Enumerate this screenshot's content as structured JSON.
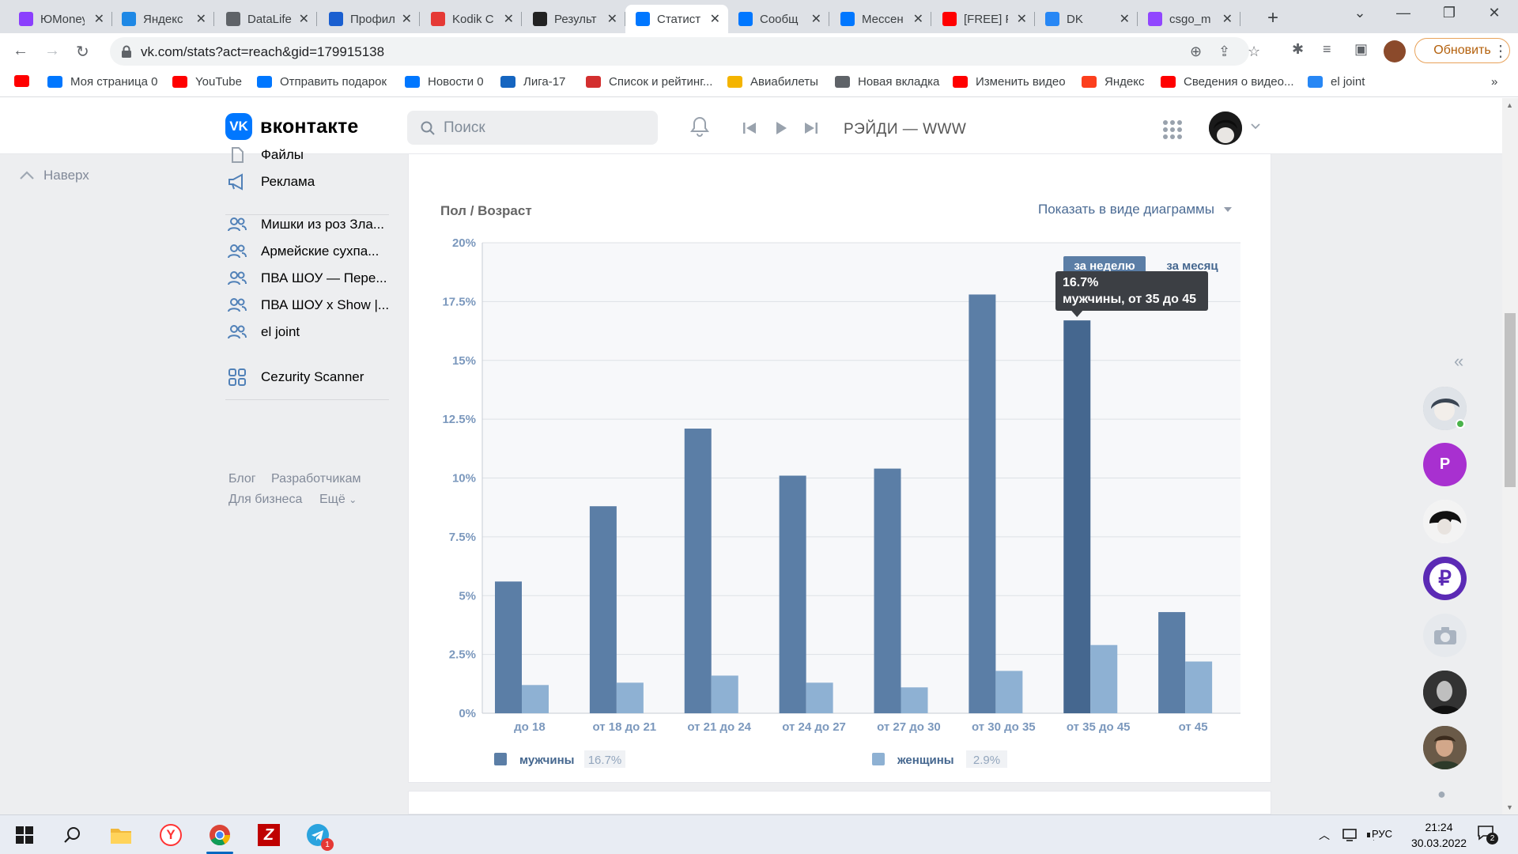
{
  "browser": {
    "tabs": [
      {
        "title": "ЮMoney",
        "icon": "yoomoney-icon",
        "color": "#8b3ffd"
      },
      {
        "title": "Яндекс",
        "icon": "yandex-disk-icon",
        "color": "#1e88e5"
      },
      {
        "title": "DataLife",
        "icon": "globe-icon",
        "color": "#5f6368"
      },
      {
        "title": "Профиль",
        "icon": "shield-icon",
        "color": "#1a5fd0"
      },
      {
        "title": "Kodik C",
        "icon": "kodik-icon",
        "color": "#e53935"
      },
      {
        "title": "Результ",
        "icon": "k-icon",
        "color": "#222222"
      },
      {
        "title": "Статист",
        "icon": "vk-icon",
        "color": "#0077ff"
      },
      {
        "title": "Сообщ",
        "icon": "message-icon",
        "color": "#0077ff"
      },
      {
        "title": "Мессен",
        "icon": "message-icon",
        "color": "#0077ff"
      },
      {
        "title": "[FREE] F",
        "icon": "youtube-icon",
        "color": "#ff0000"
      },
      {
        "title": "DK",
        "icon": "play-icon",
        "color": "#2787f5"
      },
      {
        "title": "csgo_m",
        "icon": "twitch-icon",
        "color": "#9146ff"
      }
    ],
    "active_tab": 6,
    "url": "vk.com/stats?act=reach&gid=179915138",
    "update_label": "Обновить",
    "bookmarks": [
      {
        "label": "",
        "icon": "youtube-icon",
        "color": "#ff0000"
      },
      {
        "label": "Моя страница 0",
        "icon": "vk-icon",
        "color": "#0077ff"
      },
      {
        "label": "YouTube",
        "icon": "youtube-icon",
        "color": "#ff0000"
      },
      {
        "label": "Отправить подарок",
        "icon": "vk-icon",
        "color": "#0077ff"
      },
      {
        "label": "Новости 0",
        "icon": "vk-icon",
        "color": "#0077ff"
      },
      {
        "label": "Лига-17",
        "icon": "calendar-17-icon",
        "color": "#1565c0"
      },
      {
        "label": "Список и рейтинг...",
        "icon": "gift-icon",
        "color": "#d32f2f"
      },
      {
        "label": "Авиабилеты",
        "icon": "plane-ticket-icon",
        "color": "#f4b400"
      },
      {
        "label": "Новая вкладка",
        "icon": "globe-icon",
        "color": "#5f6368"
      },
      {
        "label": "Изменить видео",
        "icon": "youtube-icon",
        "color": "#ff0000"
      },
      {
        "label": "Яндекс",
        "icon": "yandex-icon",
        "color": "#fc3f1d"
      },
      {
        "label": "Сведения о видео...",
        "icon": "youtube-icon",
        "color": "#ff0000"
      },
      {
        "label": "el joint",
        "icon": "play-icon",
        "color": "#2787f5"
      }
    ]
  },
  "vk": {
    "logo_text": "вконтакте",
    "search_placeholder": "Поиск",
    "now_playing": "РЭЙДИ — WWW",
    "up_label": "Наверх",
    "menu": [
      {
        "label": "Файлы",
        "icon": "file-icon"
      },
      {
        "label": "Реклама",
        "icon": "megaphone-icon"
      },
      {
        "label": "Мишки из роз Зла...",
        "icon": "group-icon"
      },
      {
        "label": "Армейские сухпа...",
        "icon": "group-icon"
      },
      {
        "label": "ПВА ШОУ — Пере...",
        "icon": "group-icon"
      },
      {
        "label": "ПВА ШОУ x Show |...",
        "icon": "group-icon"
      },
      {
        "label": "el joint",
        "icon": "group-icon"
      },
      {
        "label": "Cezurity Scanner",
        "icon": "apps-icon"
      }
    ],
    "footer_links": [
      "Блог",
      "Разработчикам",
      "Для бизнеса",
      "Ещё"
    ],
    "stats": {
      "title": "Пол / Возраст",
      "show_as_chart": "Показать в виде диаграммы"
    }
  },
  "chart_data": {
    "type": "bar",
    "categories": [
      "до 18",
      "от 18 до 21",
      "от 21 до 24",
      "от 24 до 27",
      "от 27 до 30",
      "от 30 до 35",
      "от 35 до 45",
      "от 45"
    ],
    "series": [
      {
        "name": "мужчины",
        "values": [
          5.6,
          8.8,
          12.1,
          10.1,
          10.4,
          17.8,
          16.7,
          4.3
        ],
        "color": "#5b7ea6",
        "legend_value": "16.7%"
      },
      {
        "name": "женщины",
        "values": [
          1.2,
          1.3,
          1.6,
          1.3,
          1.1,
          1.8,
          2.9,
          2.2
        ],
        "color": "#8eb1d3",
        "legend_value": "2.9%"
      }
    ],
    "ylim": [
      0,
      20
    ],
    "yticks": [
      "0%",
      "2.5%",
      "5%",
      "7.5%",
      "10%",
      "12.5%",
      "15%",
      "17.5%",
      "20%"
    ],
    "grid": true,
    "highlight_index": 6,
    "highlight_color": "#45678f",
    "period_buttons": [
      "за неделю",
      "за месяц"
    ],
    "tooltip": {
      "value": "16.7%",
      "label": "мужчины, от 35 до 45"
    },
    "legend_placement": "bottom"
  },
  "taskbar": {
    "language": "РУС",
    "time": "21:24",
    "date": "30.03.2022",
    "notifications": "2",
    "telegram_badge": "1"
  }
}
